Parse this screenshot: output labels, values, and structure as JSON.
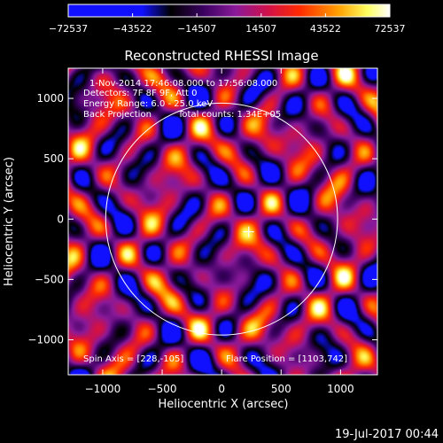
{
  "chart_data": {
    "type": "heatmap",
    "title": "Reconstructed RHESSI Image",
    "xlabel": "Heliocentric X (arcsec)",
    "ylabel": "Heliocentric Y (arcsec)",
    "xlim": [
      -1290,
      1310
    ],
    "ylim": [
      -1290,
      1250
    ],
    "xticks": [
      -1000,
      -500,
      0,
      500,
      1000
    ],
    "yticks": [
      -1000,
      -500,
      0,
      500,
      1000
    ],
    "xtick_labels": [
      "−1000",
      "−500",
      "0",
      "500",
      "1000"
    ],
    "ytick_labels": [
      "−1000",
      "−500",
      "0",
      "500",
      "1000"
    ],
    "colorbar": {
      "range": [
        -72537,
        72537
      ],
      "ticks": [
        -72537,
        -43522,
        -14507,
        14507,
        43522,
        72537
      ],
      "tick_labels": [
        "−72537",
        "−43522",
        "−14507",
        "14507",
        "43522",
        "72537"
      ],
      "colormap": [
        "#1010ff",
        "#000000",
        "#8a1a9a",
        "#ff2a00",
        "#ffa000",
        "#ffffff"
      ]
    },
    "annotations": {
      "time": "1-Nov-2014 17:46:08.000 to 17:56:08.000",
      "detectors": "Detectors: 7F 8F 9F, Att 0",
      "energy": "Energy Range: 6.0 - 25.0 keV",
      "method": "Back Projection",
      "counts": "Total counts: 1.34E+05",
      "spin_axis": "Spin Axis = [228,-105]",
      "flare_position": "Flare Position = [1103,742]"
    },
    "solar_limb": {
      "center": [
        0,
        0
      ],
      "radius": 975
    },
    "marker": {
      "shape": "cross",
      "x": 228,
      "y": -105
    },
    "grid": false
  },
  "footer": {
    "date": "19-Jul-2017 00:44"
  }
}
